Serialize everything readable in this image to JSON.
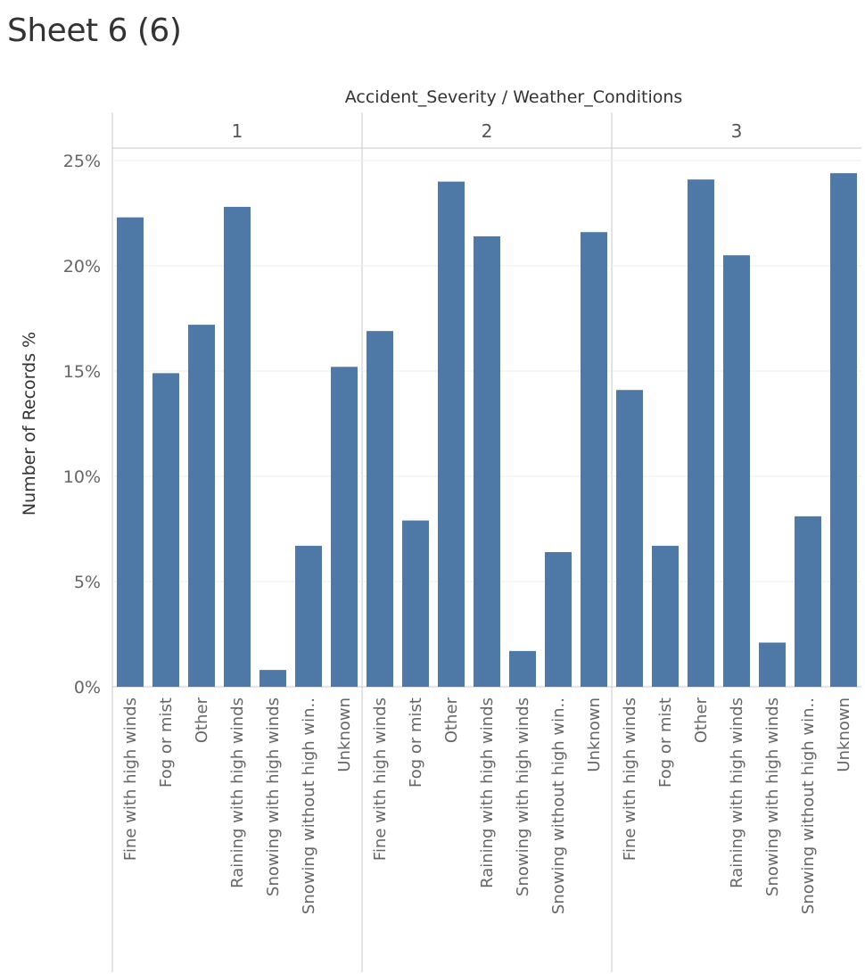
{
  "sheet": {
    "title": "Sheet 6 (6)"
  },
  "chart_data": {
    "type": "bar",
    "title": "Sheet 6 (6)",
    "column_header": "Accident_Severity / Weather_Conditions",
    "ylabel": "Number of Records %",
    "ylim": [
      0,
      25
    ],
    "yticks": [
      0,
      5,
      10,
      15,
      20,
      25
    ],
    "ytick_labels": [
      "0%",
      "5%",
      "10%",
      "15%",
      "20%",
      "25%"
    ],
    "grid": true,
    "bar_color": "#4e79a7",
    "categories": [
      "Fine with high winds",
      "Fog or mist",
      "Other",
      "Raining with high winds",
      "Snowing with high winds",
      "Snowing without high win..",
      "Unknown"
    ],
    "panels": [
      {
        "name": "1",
        "values": [
          22.3,
          14.9,
          17.2,
          22.8,
          0.8,
          6.7,
          15.2
        ]
      },
      {
        "name": "2",
        "values": [
          16.9,
          7.9,
          24.0,
          21.4,
          1.7,
          6.4,
          21.6
        ]
      },
      {
        "name": "3",
        "values": [
          14.1,
          6.7,
          24.1,
          20.5,
          2.1,
          8.1,
          24.4
        ]
      }
    ]
  }
}
